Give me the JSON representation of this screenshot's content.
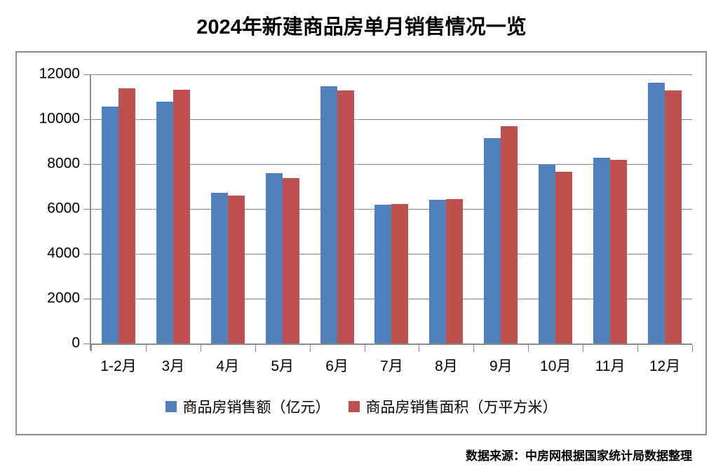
{
  "title": "2024年新建商品房单月销售情况一览",
  "title_color": "#000000",
  "source_note": "数据来源：中房网根据国家统计局数据整理",
  "frame_border_color": "#8c8c8c",
  "gridline_color": "#8a8a8a",
  "chart_data": {
    "type": "bar",
    "categories": [
      "1-2月",
      "3月",
      "4月",
      "5月",
      "6月",
      "7月",
      "8月",
      "9月",
      "10月",
      "11月",
      "12月"
    ],
    "series": [
      {
        "name": "商品房销售额（亿元）",
        "color": "#4F81BD",
        "values": [
          10566,
          10789,
          6712,
          7598,
          11468,
          6197,
          6393,
          9157,
          7975,
          8270,
          11625
        ]
      },
      {
        "name": "商品房销售面积（万平方米）",
        "color": "#C0504D",
        "values": [
          11369,
          11299,
          6584,
          7390,
          11274,
          6233,
          6453,
          9682,
          7646,
          8188,
          11267
        ]
      }
    ],
    "xlabel": "",
    "ylabel": "",
    "ylim": [
      0,
      12000
    ],
    "y_ticks": [
      0,
      2000,
      4000,
      6000,
      8000,
      10000,
      12000
    ],
    "grid": true,
    "legend_position": "bottom"
  }
}
